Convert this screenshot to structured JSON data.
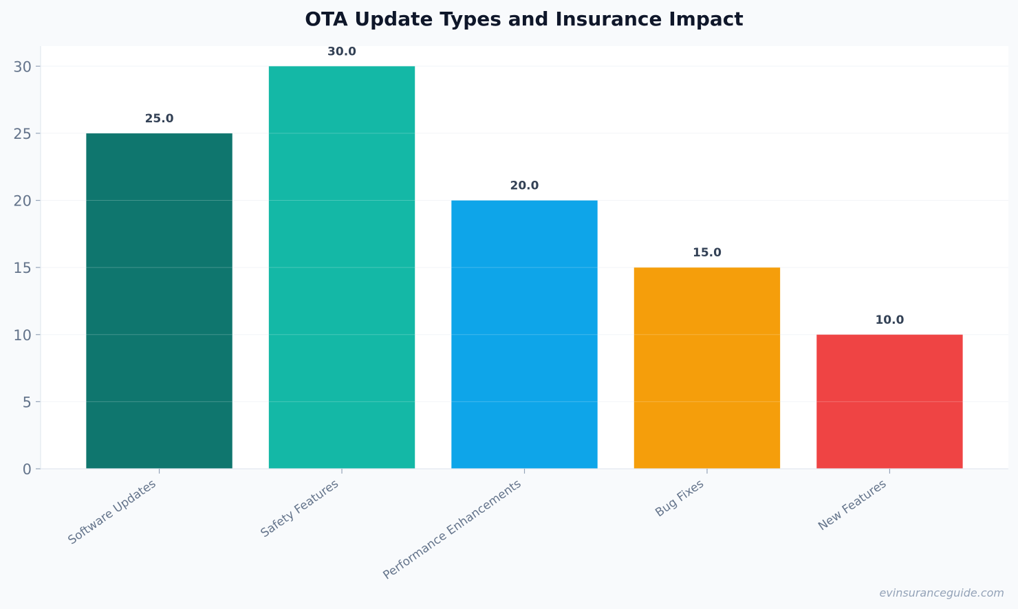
{
  "chart_data": {
    "type": "bar",
    "title": "OTA Update Types and Insurance Impact",
    "xlabel": "",
    "ylabel": "",
    "categories": [
      "Software Updates",
      "Safety Features",
      "Performance Enhancements",
      "Bug Fixes",
      "New Features"
    ],
    "values": [
      25.0,
      30.0,
      20.0,
      15.0,
      10.0
    ],
    "data_labels": [
      "25.0",
      "30.0",
      "20.0",
      "15.0",
      "10.0"
    ],
    "colors": [
      "#0f766e",
      "#14b8a6",
      "#0ea5e9",
      "#f59e0b",
      "#ef4444"
    ],
    "ylim": [
      0,
      31.5
    ],
    "yticks": [
      0,
      5,
      10,
      15,
      20,
      25,
      30
    ],
    "grid": true,
    "legend": "none"
  },
  "watermark": "evinsuranceguide.com"
}
